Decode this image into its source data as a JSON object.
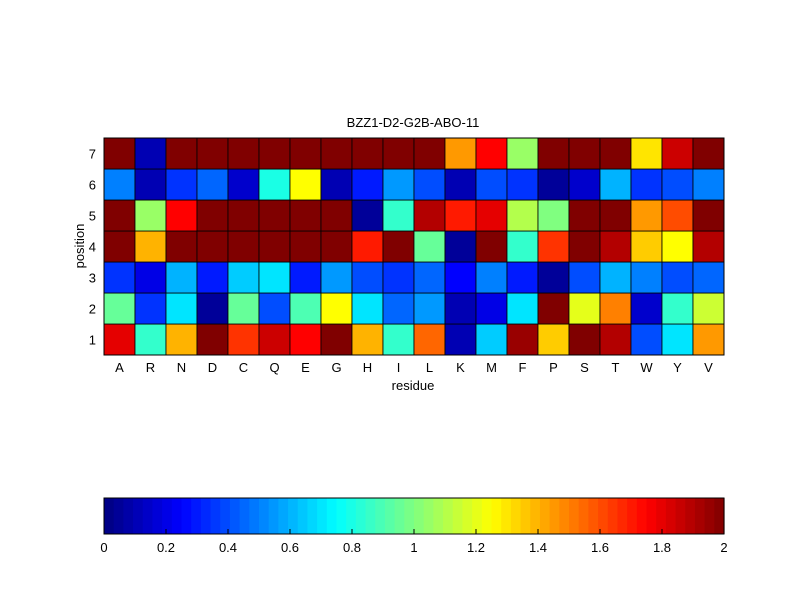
{
  "chart_data": [
    {
      "type": "heatmap",
      "title": "BZZ1-D2-G2B-ABO-11",
      "xlabel": "residue",
      "ylabel": "position",
      "x_categories": [
        "A",
        "R",
        "N",
        "D",
        "C",
        "Q",
        "E",
        "G",
        "H",
        "I",
        "L",
        "K",
        "M",
        "F",
        "P",
        "S",
        "T",
        "W",
        "Y",
        "V"
      ],
      "y_categories": [
        "1",
        "2",
        "3",
        "4",
        "5",
        "6",
        "7"
      ],
      "colormap": "jet",
      "clim": [
        0,
        2
      ],
      "values": [
        [
          1.8,
          0.85,
          1.4,
          2.0,
          1.65,
          1.85,
          1.75,
          2.0,
          1.4,
          0.85,
          1.55,
          0.1,
          0.65,
          1.95,
          1.35,
          2.0,
          1.9,
          0.4,
          0.7,
          1.45
        ],
        [
          0.95,
          0.35,
          0.7,
          0.05,
          0.95,
          0.4,
          0.9,
          1.25,
          0.7,
          0.45,
          0.55,
          0.1,
          0.2,
          0.7,
          2.0,
          1.2,
          1.5,
          0.15,
          0.85,
          1.15
        ],
        [
          0.35,
          0.2,
          0.6,
          0.3,
          0.65,
          0.7,
          0.3,
          0.55,
          0.4,
          0.35,
          0.45,
          0.25,
          0.5,
          0.3,
          0.05,
          0.4,
          0.6,
          0.5,
          0.4,
          0.45
        ],
        [
          2.0,
          1.4,
          2.0,
          2.0,
          2.0,
          2.0,
          2.0,
          2.0,
          1.7,
          2.0,
          0.95,
          0.05,
          2.0,
          0.85,
          1.65,
          2.0,
          1.9,
          1.35,
          1.25,
          1.9
        ],
        [
          2.0,
          1.05,
          1.75,
          2.0,
          2.0,
          2.0,
          2.0,
          2.0,
          0.05,
          0.85,
          1.9,
          1.7,
          1.8,
          1.1,
          1.0,
          2.0,
          2.0,
          1.45,
          1.6,
          2.0
        ],
        [
          0.5,
          0.1,
          0.35,
          0.45,
          0.15,
          0.8,
          1.25,
          0.1,
          0.3,
          0.55,
          0.4,
          0.1,
          0.4,
          0.35,
          0.05,
          0.15,
          0.6,
          0.35,
          0.4,
          0.5
        ],
        [
          2.0,
          0.1,
          2.0,
          2.0,
          2.0,
          2.0,
          2.0,
          2.0,
          2.0,
          2.0,
          2.0,
          1.45,
          1.75,
          1.05,
          2.0,
          2.0,
          2.0,
          1.3,
          1.85,
          2.0
        ]
      ],
      "grid": false
    },
    {
      "type": "colorbar",
      "orientation": "horizontal",
      "range": [
        0,
        2
      ],
      "ticks": [
        "0",
        "0.2",
        "0.4",
        "0.6",
        "0.8",
        "1",
        "1.2",
        "1.4",
        "1.6",
        "1.8",
        "2"
      ]
    }
  ]
}
